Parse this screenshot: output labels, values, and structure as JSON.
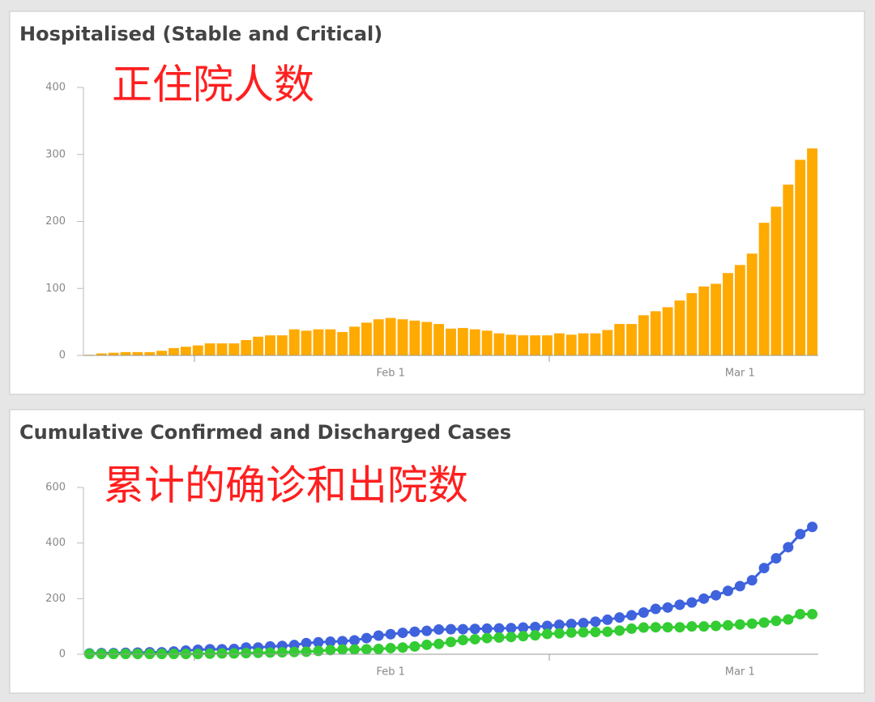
{
  "chart_data": [
    {
      "type": "bar",
      "title": "Hospitalised (Stable and Critical)",
      "annotation": "正住院人数",
      "categories": [
        null,
        null,
        null,
        null,
        null,
        null,
        null,
        null,
        null,
        null,
        null,
        null,
        null,
        null,
        null,
        null,
        null,
        null,
        null,
        null,
        null,
        null,
        null,
        null,
        null,
        "Feb 1",
        null,
        null,
        null,
        null,
        null,
        null,
        null,
        null,
        null,
        null,
        null,
        null,
        null,
        null,
        null,
        null,
        null,
        null,
        null,
        null,
        null,
        null,
        null,
        null,
        null,
        null,
        null,
        null,
        "Mar 1",
        null,
        null,
        null,
        null,
        null,
        null
      ],
      "values": [
        1,
        3,
        4,
        5,
        5,
        5,
        7,
        11,
        13,
        15,
        18,
        18,
        18,
        23,
        28,
        30,
        30,
        39,
        37,
        39,
        39,
        35,
        43,
        49,
        54,
        56,
        54,
        52,
        50,
        47,
        40,
        41,
        39,
        37,
        33,
        31,
        30,
        30,
        30,
        33,
        31,
        33,
        33,
        38,
        47,
        47,
        60,
        66,
        72,
        82,
        93,
        103,
        107,
        123,
        135,
        152,
        198,
        222,
        255,
        292,
        309
      ],
      "color": "#ffaa00",
      "ylim": [
        0,
        400
      ],
      "yticks": [
        0,
        100,
        200,
        300,
        400
      ]
    },
    {
      "type": "line",
      "title": "Cumulative Confirmed and Discharged Cases",
      "annotation": "累计的确诊和出院数",
      "categories": [
        null,
        null,
        null,
        null,
        null,
        null,
        null,
        null,
        null,
        null,
        null,
        null,
        null,
        null,
        null,
        null,
        null,
        null,
        null,
        null,
        null,
        null,
        null,
        null,
        null,
        "Feb 1",
        null,
        null,
        null,
        null,
        null,
        null,
        null,
        null,
        null,
        null,
        null,
        null,
        null,
        null,
        null,
        null,
        null,
        null,
        null,
        null,
        null,
        null,
        null,
        null,
        null,
        null,
        null,
        null,
        "Mar 1",
        null,
        null,
        null,
        null,
        null,
        null
      ],
      "series": [
        {
          "color": "#3f63dd",
          "values": [
            3,
            4,
            4,
            5,
            6,
            7,
            7,
            10,
            13,
            16,
            18,
            18,
            19,
            24,
            24,
            28,
            30,
            33,
            40,
            43,
            45,
            47,
            50,
            58,
            67,
            72,
            77,
            81,
            84,
            89,
            90,
            90,
            91,
            92,
            93,
            94,
            96,
            98,
            102,
            106,
            109,
            112,
            117,
            124,
            132,
            140,
            150,
            163,
            168,
            178,
            186,
            200,
            212,
            228,
            245,
            266,
            310,
            345,
            385,
            432,
            458
          ]
        },
        {
          "color": "#33cc33",
          "values": [
            1,
            1,
            1,
            1,
            1,
            1,
            1,
            1,
            1,
            1,
            2,
            3,
            3,
            4,
            5,
            6,
            7,
            8,
            9,
            12,
            15,
            17,
            17,
            18,
            19,
            22,
            24,
            28,
            34,
            37,
            44,
            51,
            54,
            58,
            60,
            62,
            65,
            68,
            73,
            75,
            78,
            79,
            80,
            81,
            85,
            92,
            96,
            97,
            97,
            97,
            100,
            100,
            102,
            104,
            107,
            110,
            114,
            120,
            125,
            144,
            144
          ]
        }
      ],
      "ylim": [
        0,
        600
      ],
      "yticks": [
        0,
        200,
        400,
        600
      ]
    }
  ]
}
